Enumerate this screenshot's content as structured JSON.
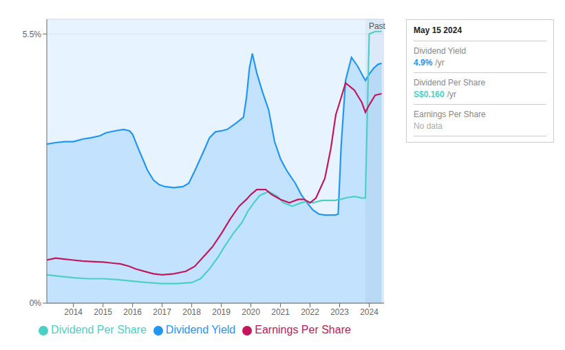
{
  "chart_data": {
    "type": "line",
    "series": [
      {
        "name": "Dividend Yield",
        "color": "#2196F3",
        "type": "area",
        "x": [
          2013.1,
          2013.4,
          2013.7,
          2014.0,
          2014.3,
          2014.6,
          2014.9,
          2015.1,
          2015.4,
          2015.7,
          2015.9,
          2016.0,
          2016.2,
          2016.5,
          2016.7,
          2016.9,
          2017.1,
          2017.4,
          2017.7,
          2017.9,
          2018.1,
          2018.4,
          2018.6,
          2018.8,
          2019.0,
          2019.2,
          2019.5,
          2019.75,
          2019.85,
          2019.95,
          2020.05,
          2020.2,
          2020.4,
          2020.6,
          2020.8,
          2021.0,
          2021.2,
          2021.5,
          2021.7,
          2021.9,
          2022.1,
          2022.3,
          2022.5,
          2022.7,
          2022.85,
          2022.95,
          2023.05,
          2023.2,
          2023.4,
          2023.6,
          2023.75,
          2023.87,
          2024.0,
          2024.15,
          2024.3,
          2024.42
        ],
        "values": [
          3.25,
          3.28,
          3.3,
          3.3,
          3.35,
          3.38,
          3.42,
          3.48,
          3.52,
          3.55,
          3.52,
          3.45,
          3.15,
          2.72,
          2.52,
          2.42,
          2.38,
          2.36,
          2.38,
          2.45,
          2.7,
          3.1,
          3.38,
          3.5,
          3.52,
          3.55,
          3.68,
          3.8,
          4.2,
          4.8,
          5.1,
          4.7,
          4.3,
          3.95,
          3.3,
          2.95,
          2.72,
          2.45,
          2.22,
          2.05,
          1.9,
          1.82,
          1.8,
          1.8,
          1.8,
          1.82,
          3.2,
          4.55,
          5.02,
          4.85,
          4.68,
          4.55,
          4.68,
          4.8,
          4.88,
          4.9
        ]
      },
      {
        "name": "Dividend Per Share",
        "color": "#4DD0C4",
        "type": "line",
        "x": [
          2013.1,
          2013.5,
          2014.0,
          2014.5,
          2015.0,
          2015.5,
          2016.0,
          2016.5,
          2017.0,
          2017.5,
          2018.0,
          2018.3,
          2018.6,
          2018.9,
          2019.1,
          2019.4,
          2019.7,
          2019.9,
          2020.1,
          2020.3,
          2020.6,
          2020.9,
          2021.1,
          2021.4,
          2021.7,
          2021.9,
          2022.1,
          2022.4,
          2022.7,
          2022.87,
          2022.95,
          2023.05,
          2023.2,
          2023.5,
          2023.75,
          2023.87,
          2024.0,
          2024.2,
          2024.42
        ],
        "values": [
          0.58,
          0.55,
          0.52,
          0.5,
          0.5,
          0.48,
          0.45,
          0.42,
          0.4,
          0.4,
          0.42,
          0.5,
          0.7,
          0.95,
          1.15,
          1.42,
          1.65,
          1.88,
          2.05,
          2.2,
          2.28,
          2.18,
          2.05,
          1.98,
          2.05,
          2.08,
          2.05,
          2.1,
          2.1,
          2.1,
          2.12,
          2.12,
          2.15,
          2.18,
          2.15,
          2.15,
          5.5,
          5.55,
          5.55
        ]
      },
      {
        "name": "Earnings Per Share",
        "color": "#C2185B",
        "type": "line",
        "x": [
          2013.1,
          2013.4,
          2013.7,
          2014.0,
          2014.3,
          2014.6,
          2015.0,
          2015.3,
          2015.6,
          2015.9,
          2016.1,
          2016.4,
          2016.7,
          2017.0,
          2017.4,
          2017.8,
          2018.1,
          2018.4,
          2018.7,
          2019.0,
          2019.3,
          2019.6,
          2019.85,
          2020.0,
          2020.2,
          2020.5,
          2020.7,
          2021.0,
          2021.3,
          2021.6,
          2021.8,
          2022.0,
          2022.2,
          2022.5,
          2022.7,
          2022.87,
          2023.0,
          2023.2,
          2023.5,
          2023.75,
          2023.87,
          2024.0,
          2024.2,
          2024.42
        ],
        "values": [
          0.88,
          0.92,
          0.9,
          0.88,
          0.86,
          0.85,
          0.84,
          0.82,
          0.8,
          0.75,
          0.7,
          0.65,
          0.6,
          0.58,
          0.6,
          0.65,
          0.75,
          0.95,
          1.15,
          1.42,
          1.72,
          1.98,
          2.12,
          2.22,
          2.32,
          2.32,
          2.22,
          2.12,
          2.05,
          2.12,
          2.12,
          2.05,
          2.15,
          2.55,
          3.15,
          3.85,
          4.1,
          4.5,
          4.35,
          4.1,
          3.9,
          4.05,
          4.25,
          4.28
        ]
      }
    ],
    "xlim": [
      2013.1,
      2024.5
    ],
    "xticks": [
      2014,
      2015,
      2016,
      2017,
      2018,
      2019,
      2020,
      2021,
      2022,
      2023,
      2024
    ],
    "ylim": [
      0.0,
      5.8
    ],
    "yticks": [
      {
        "value": 0,
        "label": "0%"
      },
      {
        "value": 5.5,
        "label": "5.5%"
      }
    ],
    "grid": true,
    "legend": "bottom",
    "spans": [
      {
        "x0": 2013.1,
        "x1": 2023.87,
        "color": "#ddeeff"
      },
      {
        "x0": 2023.87,
        "x1": 2024.5,
        "color": "#cce0f5",
        "label": "Past"
      }
    ],
    "tooltip": {
      "title": "May 15 2024",
      "rows": [
        {
          "label": "Dividend Yield",
          "value": "4.9%",
          "unit": "/yr",
          "color": "#2196F3"
        },
        {
          "label": "Dividend Per Share",
          "value": "S$0.160",
          "unit": "/yr",
          "color": "#4DD0C4"
        },
        {
          "label": "Earnings Per Share",
          "value": "No data",
          "color": "#aaaaaa"
        }
      ]
    }
  }
}
